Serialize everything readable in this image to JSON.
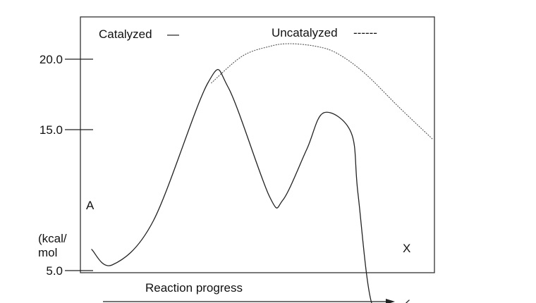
{
  "chart_data": {
    "type": "line",
    "title": "",
    "xlabel": "Reaction progress",
    "ylabel_lines": [
      "(kcal/",
      "mol"
    ],
    "yticks": [
      {
        "value": 5.0,
        "label": "5.0"
      },
      {
        "value": 15.0,
        "label": "15.0"
      },
      {
        "value": 20.0,
        "label": "20.0"
      }
    ],
    "legend": {
      "placement": "top",
      "catalyzed": {
        "text": "Catalyzed",
        "marker": "—"
      },
      "uncatalyzed": {
        "text": "Uncatalyzed",
        "marker": "------"
      }
    },
    "annotations": {
      "start": "A",
      "end": "X"
    },
    "series": [
      {
        "name": "Catalyzed",
        "style": "solid",
        "x": [
          0.0,
          0.06,
          0.18,
          0.34,
          0.4,
          0.52,
          0.56,
          0.63,
          0.68,
          0.76,
          0.78,
          0.82,
          0.88,
          0.93
        ],
        "y": [
          6.5,
          5.4,
          8.5,
          18.3,
          18.0,
          10.3,
          10.0,
          13.6,
          16.2,
          14.8,
          10.5,
          2.7,
          2.0,
          2.9
        ]
      },
      {
        "name": "Uncatalyzed",
        "style": "dashed",
        "x": [
          0.35,
          0.44,
          0.52,
          0.58,
          0.66,
          0.72,
          0.8,
          0.9,
          1.0
        ],
        "y": [
          18.3,
          20.2,
          20.9,
          21.1,
          20.9,
          20.4,
          19.0,
          16.6,
          14.3
        ]
      }
    ],
    "xlim": [
      0,
      1
    ],
    "ylim": [
      -1.5,
      23
    ],
    "grid": false,
    "colors": {
      "axis": "#222222",
      "catalyzed": "#222222",
      "uncatalyzed": "#555555"
    }
  }
}
